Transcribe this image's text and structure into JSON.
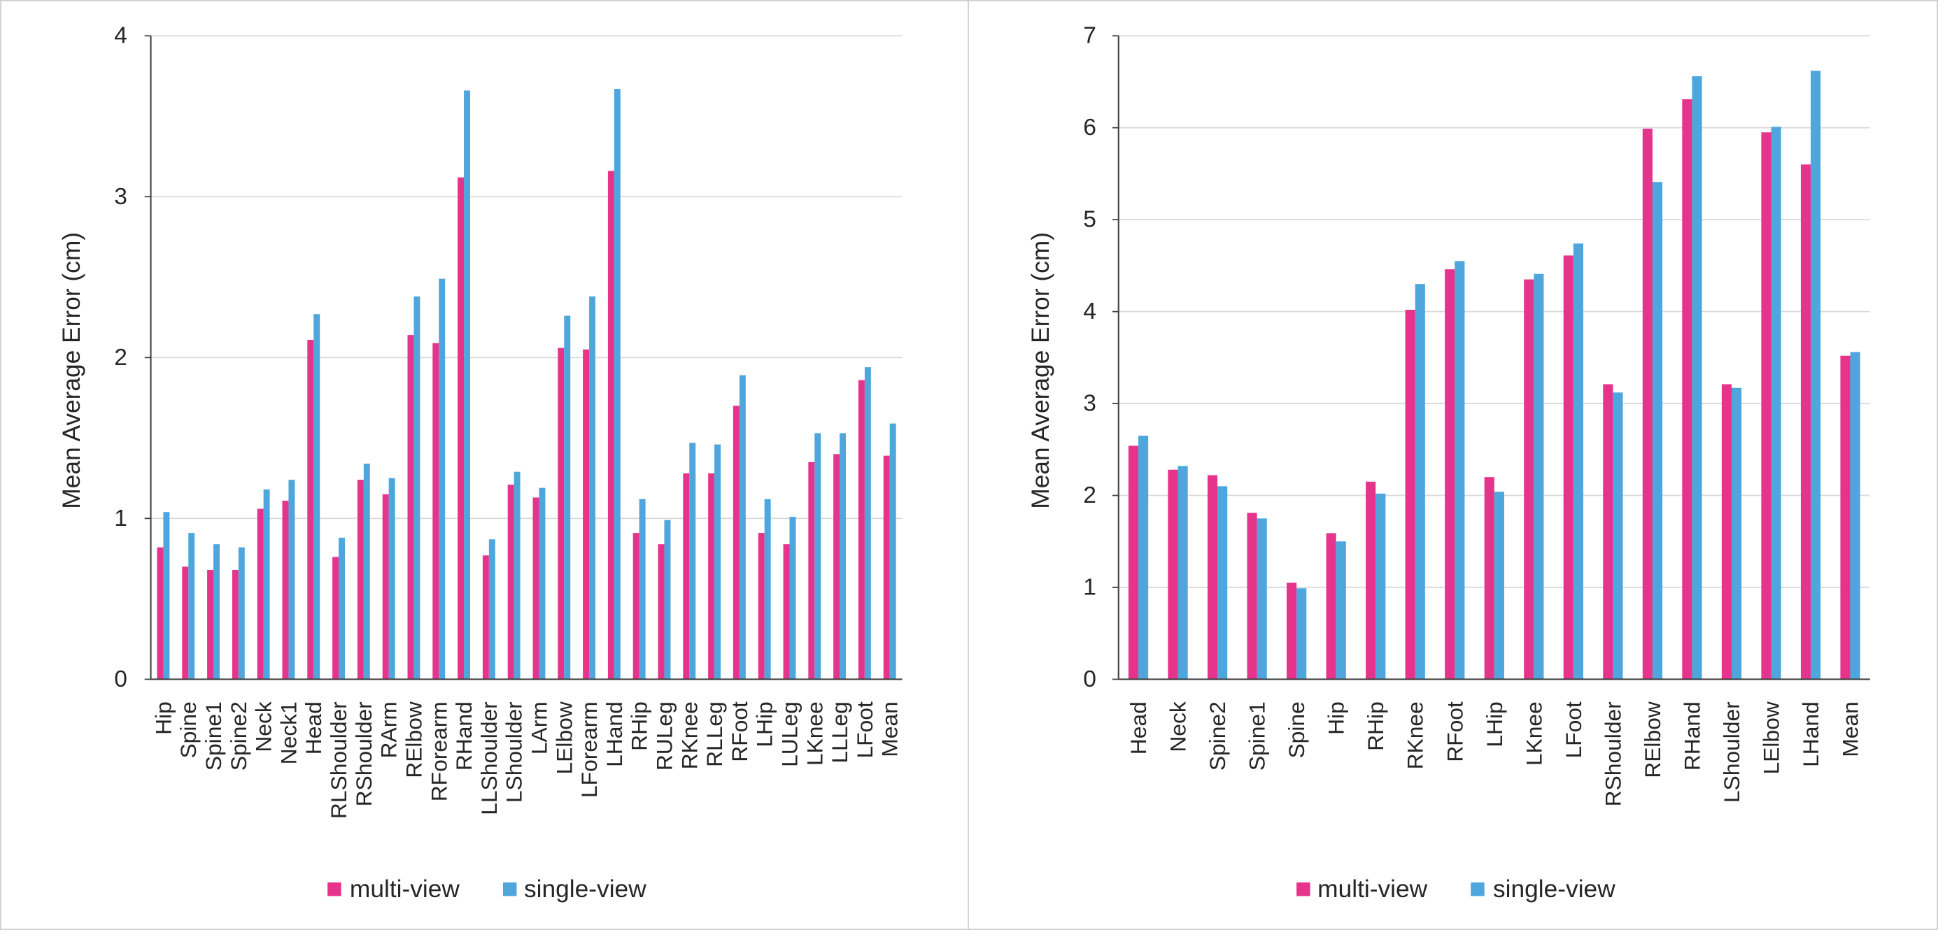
{
  "chart_data": [
    {
      "type": "bar",
      "ylabel": "Mean Average Error (cm)",
      "ylim": [
        0,
        4
      ],
      "yticks": [
        0,
        1,
        2,
        3,
        4
      ],
      "grid": true,
      "legend": "bottom",
      "categories": [
        "Hip",
        "Spine",
        "Spine1",
        "Spine2",
        "Neck",
        "Neck1",
        "Head",
        "RLShoulder",
        "RShoulder",
        "RArm",
        "RElbow",
        "RForearm",
        "RHand",
        "LLShoulder",
        "LShoulder",
        "LArm",
        "LElbow",
        "LForearm",
        "LHand",
        "RHip",
        "RULeg",
        "RKnee",
        "RLLeg",
        "RFoot",
        "LHip",
        "LULeg",
        "LKnee",
        "LLLeg",
        "LFoot",
        "Mean"
      ],
      "series": [
        {
          "name": "multi-view",
          "color": "#E6338C",
          "values": [
            0.82,
            0.7,
            0.68,
            0.68,
            1.06,
            1.11,
            2.11,
            0.76,
            1.24,
            1.15,
            2.14,
            2.09,
            3.12,
            0.77,
            1.21,
            1.13,
            2.06,
            2.05,
            3.16,
            0.91,
            0.84,
            1.28,
            1.28,
            1.7,
            0.91,
            0.84,
            1.35,
            1.4,
            1.86,
            1.39
          ]
        },
        {
          "name": "single-view",
          "color": "#4EA6DD",
          "values": [
            1.04,
            0.91,
            0.84,
            0.82,
            1.18,
            1.24,
            2.27,
            0.88,
            1.34,
            1.25,
            2.38,
            2.49,
            3.66,
            0.87,
            1.29,
            1.19,
            2.26,
            2.38,
            3.67,
            1.12,
            0.99,
            1.47,
            1.46,
            1.89,
            1.12,
            1.01,
            1.53,
            1.53,
            1.94,
            1.59
          ]
        }
      ]
    },
    {
      "type": "bar",
      "ylabel": "Mean Average Error (cm)",
      "ylim": [
        0,
        7
      ],
      "yticks": [
        0,
        1,
        2,
        3,
        4,
        5,
        6,
        7
      ],
      "grid": true,
      "legend": "bottom",
      "categories": [
        "Head",
        "Neck",
        "Spine2",
        "Spine1",
        "Spine",
        "Hip",
        "RHip",
        "RKnee",
        "RFoot",
        "LHip",
        "LKnee",
        "LFoot",
        "RShoulder",
        "RElbow",
        "RHand",
        "LShoulder",
        "LElbow",
        "LHand",
        "Mean"
      ],
      "series": [
        {
          "name": "multi-view",
          "color": "#E6338C",
          "values": [
            2.54,
            2.28,
            2.22,
            1.81,
            1.05,
            1.59,
            2.15,
            4.02,
            4.46,
            2.2,
            4.35,
            4.61,
            3.21,
            5.99,
            6.31,
            3.21,
            5.95,
            5.6,
            3.52
          ]
        },
        {
          "name": "single-view",
          "color": "#4EA6DD",
          "values": [
            2.65,
            2.32,
            2.1,
            1.75,
            0.99,
            1.5,
            2.02,
            4.3,
            4.55,
            2.04,
            4.41,
            4.74,
            3.12,
            5.41,
            6.56,
            3.17,
            6.01,
            6.62,
            3.56
          ]
        }
      ]
    }
  ]
}
